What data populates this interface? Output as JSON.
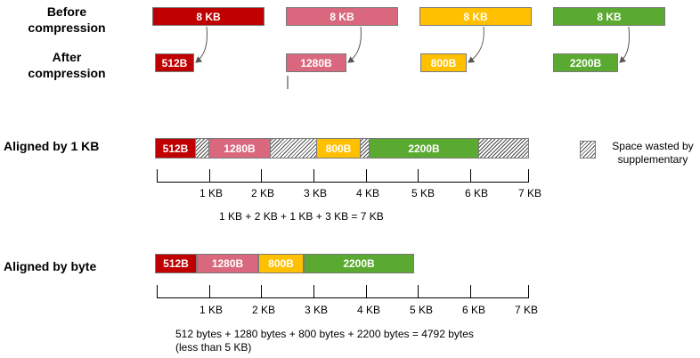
{
  "labels": {
    "before": "Before\ncompression",
    "after": "After\ncompression",
    "aligned_kb": "Aligned by 1 KB",
    "aligned_byte": "Aligned by byte"
  },
  "colors": {
    "red": "#c00000",
    "pink": "#d9687e",
    "orange": "#ffc000",
    "green": "#5aaa32",
    "hatch": "#4a4a4a"
  },
  "blocks": {
    "before": [
      "8 KB",
      "8 KB",
      "8 KB",
      "8 KB"
    ],
    "after": [
      "512B",
      "1280B",
      "800B",
      "2200B"
    ]
  },
  "aligned_kb_segments": [
    "512B",
    "1280B",
    "800B",
    "2200B"
  ],
  "aligned_byte_segments": [
    "512B",
    "1280B",
    "800B",
    "2200B"
  ],
  "axis_ticks": [
    "1 KB",
    "2 KB",
    "3 KB",
    "4 KB",
    "5 KB",
    "6 KB",
    "7 KB"
  ],
  "notes": {
    "kb_total": "1 KB + 2 KB + 1 KB + 3 KB = 7 KB",
    "byte_total_line1": "512 bytes + 1280 bytes + 800 bytes + 2200 bytes = 4792 bytes",
    "byte_total_line2": "(less than 5 KB)"
  },
  "legend": {
    "text": "Space wasted by\nsupplementary"
  }
}
